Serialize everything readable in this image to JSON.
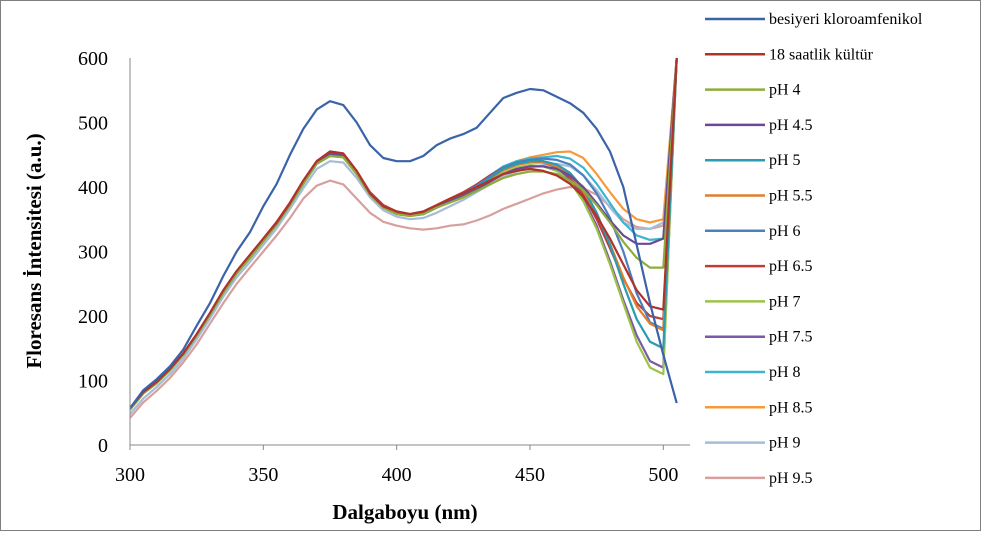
{
  "chart_data": {
    "type": "line",
    "title": "",
    "xlabel": "Dalgaboyu (nm)",
    "ylabel": "Floresans İntensitesi (a.u.)",
    "xlim": [
      300,
      510
    ],
    "ylim": [
      0,
      600
    ],
    "x_ticks": [
      "300",
      "350",
      "400",
      "450",
      "500"
    ],
    "y_ticks": [
      "0",
      "100",
      "200",
      "300",
      "400",
      "500",
      "600"
    ],
    "grid": false,
    "legend_position": "right",
    "x": [
      300,
      305,
      310,
      315,
      320,
      325,
      330,
      335,
      340,
      345,
      350,
      355,
      360,
      365,
      370,
      375,
      380,
      385,
      390,
      395,
      400,
      405,
      410,
      415,
      420,
      425,
      430,
      435,
      440,
      445,
      450,
      455,
      460,
      465,
      470,
      475,
      480,
      485,
      490,
      495,
      500,
      505
    ],
    "series": [
      {
        "name": "besiyeri kloroamfenikol",
        "color": "#3a63a8",
        "values": [
          57,
          85,
          102,
          122,
          148,
          185,
          220,
          262,
          300,
          330,
          370,
          405,
          450,
          490,
          520,
          533,
          527,
          500,
          465,
          445,
          440,
          440,
          448,
          465,
          475,
          482,
          492,
          515,
          538,
          546,
          552,
          550,
          540,
          530,
          515,
          490,
          455,
          400,
          310,
          220,
          140,
          65
        ]
      },
      {
        "name": "18 saatlik kültür",
        "color": "#b0322d",
        "values": [
          57,
          82,
          98,
          118,
          142,
          172,
          205,
          240,
          270,
          295,
          320,
          345,
          375,
          410,
          440,
          455,
          452,
          425,
          390,
          370,
          362,
          358,
          362,
          372,
          382,
          390,
          400,
          410,
          420,
          425,
          428,
          425,
          418,
          405,
          385,
          355,
          320,
          280,
          240,
          215,
          210,
          600
        ]
      },
      {
        "name": "pH 4",
        "color": "#8fab3c",
        "values": [
          55,
          80,
          96,
          116,
          140,
          170,
          202,
          236,
          266,
          290,
          316,
          342,
          372,
          405,
          436,
          448,
          446,
          420,
          388,
          368,
          358,
          355,
          358,
          368,
          376,
          384,
          394,
          404,
          414,
          420,
          424,
          424,
          420,
          410,
          395,
          372,
          345,
          315,
          290,
          275,
          275,
          600
        ]
      },
      {
        "name": "pH 4.5",
        "color": "#6b4a93",
        "values": [
          56,
          81,
          97,
          117,
          141,
          171,
          203,
          237,
          267,
          291,
          318,
          344,
          374,
          408,
          438,
          452,
          450,
          423,
          390,
          370,
          360,
          357,
          360,
          370,
          378,
          386,
          396,
          408,
          420,
          428,
          432,
          432,
          428,
          418,
          400,
          375,
          348,
          325,
          312,
          312,
          320,
          600
        ]
      },
      {
        "name": "pH 5",
        "color": "#2a9bb0",
        "values": [
          55,
          80,
          96,
          116,
          140,
          170,
          202,
          236,
          266,
          290,
          316,
          342,
          372,
          405,
          436,
          450,
          448,
          422,
          390,
          370,
          360,
          356,
          358,
          368,
          378,
          388,
          400,
          414,
          428,
          436,
          440,
          440,
          435,
          422,
          398,
          360,
          310,
          250,
          195,
          160,
          150,
          600
        ]
      },
      {
        "name": "pH 5.5",
        "color": "#e07f2c",
        "values": [
          56,
          81,
          97,
          117,
          141,
          171,
          203,
          237,
          267,
          291,
          318,
          344,
          374,
          408,
          438,
          452,
          450,
          423,
          390,
          370,
          360,
          357,
          360,
          370,
          379,
          388,
          400,
          413,
          426,
          434,
          438,
          438,
          432,
          418,
          394,
          358,
          312,
          260,
          215,
          188,
          178,
          600
        ]
      },
      {
        "name": "pH 6",
        "color": "#4a7fc0",
        "values": [
          56,
          81,
          97,
          117,
          141,
          171,
          203,
          237,
          267,
          291,
          318,
          344,
          374,
          408,
          438,
          452,
          450,
          423,
          390,
          370,
          360,
          357,
          360,
          370,
          380,
          390,
          402,
          416,
          430,
          438,
          442,
          444,
          442,
          435,
          418,
          390,
          352,
          300,
          235,
          190,
          180,
          600
        ]
      },
      {
        "name": "pH 6.5",
        "color": "#c23b36",
        "values": [
          57,
          82,
          98,
          118,
          142,
          172,
          204,
          238,
          268,
          292,
          320,
          346,
          376,
          410,
          440,
          455,
          452,
          425,
          392,
          372,
          362,
          358,
          362,
          372,
          382,
          392,
          404,
          418,
          430,
          438,
          442,
          440,
          432,
          415,
          388,
          350,
          305,
          258,
          220,
          200,
          195,
          600
        ]
      },
      {
        "name": "pH 7",
        "color": "#9dc24a",
        "values": [
          55,
          80,
          96,
          116,
          140,
          170,
          202,
          236,
          266,
          290,
          316,
          342,
          372,
          405,
          436,
          448,
          446,
          420,
          388,
          368,
          358,
          355,
          358,
          368,
          376,
          384,
          396,
          410,
          422,
          430,
          434,
          432,
          425,
          408,
          378,
          335,
          280,
          220,
          160,
          120,
          110,
          600
        ]
      },
      {
        "name": "pH 7.5",
        "color": "#7a5aa6",
        "values": [
          56,
          81,
          97,
          117,
          141,
          171,
          203,
          237,
          267,
          291,
          318,
          344,
          374,
          408,
          438,
          452,
          450,
          423,
          390,
          370,
          360,
          357,
          360,
          370,
          380,
          390,
          402,
          415,
          428,
          436,
          440,
          438,
          430,
          412,
          382,
          340,
          285,
          225,
          170,
          130,
          120,
          600
        ]
      },
      {
        "name": "pH 8",
        "color": "#3db4d0",
        "values": [
          55,
          80,
          96,
          116,
          140,
          170,
          202,
          236,
          266,
          290,
          316,
          342,
          372,
          405,
          436,
          450,
          448,
          422,
          390,
          370,
          360,
          356,
          358,
          368,
          380,
          390,
          404,
          418,
          432,
          440,
          444,
          446,
          448,
          444,
          430,
          405,
          375,
          345,
          325,
          318,
          320,
          600
        ]
      },
      {
        "name": "pH 8.5",
        "color": "#f59a3c",
        "values": [
          56,
          81,
          97,
          117,
          141,
          171,
          203,
          237,
          267,
          291,
          318,
          344,
          374,
          408,
          438,
          452,
          450,
          423,
          390,
          370,
          360,
          357,
          360,
          370,
          380,
          390,
          402,
          416,
          430,
          440,
          446,
          450,
          454,
          455,
          445,
          420,
          392,
          366,
          350,
          345,
          350,
          600
        ]
      },
      {
        "name": "pH 9",
        "color": "#a6bcd8",
        "values": [
          48,
          72,
          90,
          110,
          134,
          164,
          196,
          230,
          260,
          284,
          310,
          336,
          366,
          398,
          428,
          440,
          438,
          414,
          384,
          364,
          354,
          350,
          352,
          360,
          370,
          380,
          392,
          404,
          416,
          424,
          430,
          434,
          436,
          432,
          418,
          395,
          368,
          345,
          335,
          335,
          345,
          600
        ]
      },
      {
        "name": "pH 9.5",
        "color": "#d8a09c",
        "values": [
          42,
          66,
          84,
          104,
          128,
          156,
          188,
          220,
          250,
          275,
          300,
          325,
          352,
          382,
          402,
          410,
          404,
          382,
          360,
          346,
          340,
          336,
          334,
          336,
          340,
          342,
          348,
          356,
          366,
          374,
          382,
          390,
          396,
          400,
          398,
          388,
          370,
          350,
          338,
          335,
          340,
          600
        ]
      }
    ]
  }
}
